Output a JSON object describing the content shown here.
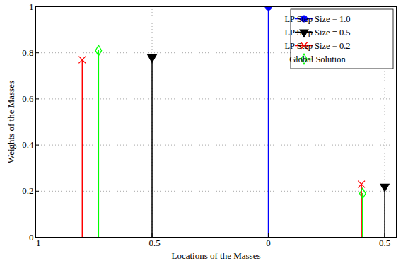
{
  "chart_data": {
    "type": "stem",
    "xlabel": "Locations of the Masses",
    "ylabel": "Weights of the Masses",
    "xlim": [
      -1,
      0.55
    ],
    "xticks": [
      -1,
      -0.5,
      0,
      0.5
    ],
    "ylim": [
      0,
      1
    ],
    "yticks": [
      0,
      0.2,
      0.4,
      0.6,
      0.8,
      1
    ],
    "grid": true,
    "legend": "top right",
    "series": [
      {
        "name": "LP Step Size = 1.0",
        "color": "#0000ff",
        "marker": "circle",
        "x": [
          0
        ],
        "values": [
          1.0
        ]
      },
      {
        "name": "LP Step Size = 0.5",
        "color": "#000000",
        "marker": "triangle-down",
        "x": [
          -0.5,
          0.5
        ],
        "values": [
          0.78,
          0.22
        ]
      },
      {
        "name": "LP Step Size = 0.2",
        "color": "#ff0000",
        "marker": "x",
        "x": [
          -0.8,
          0.4
        ],
        "values": [
          0.77,
          0.23
        ]
      },
      {
        "name": "Global Solution",
        "color": "#00ff00",
        "marker": "diamond",
        "x": [
          -0.73,
          0.405
        ],
        "values": [
          0.81,
          0.19
        ]
      }
    ]
  }
}
